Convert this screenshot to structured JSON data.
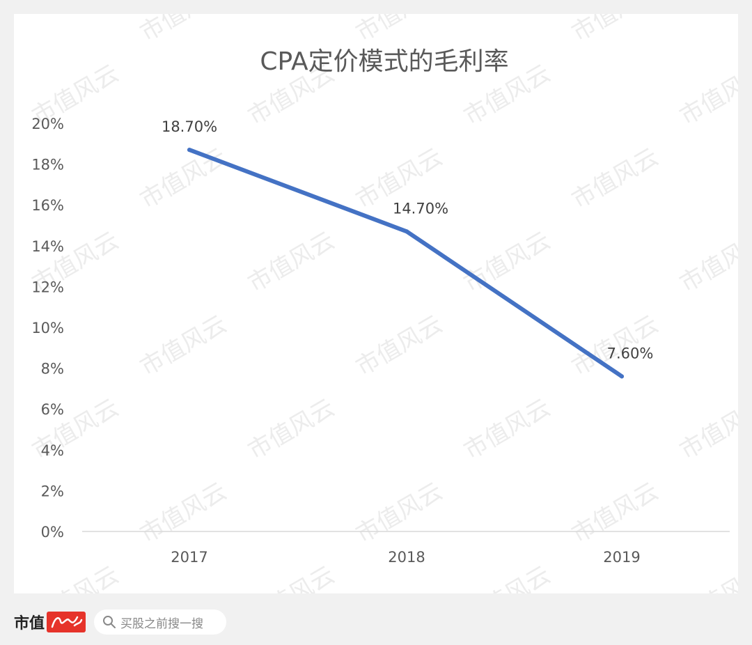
{
  "chart_data": {
    "type": "line",
    "title": "CPA定价模式的毛利率",
    "categories": [
      "2017",
      "2018",
      "2019"
    ],
    "series": [
      {
        "values": [
          18.7,
          14.7,
          7.6
        ],
        "data_labels": [
          "18.70%",
          "14.70%",
          "7.60%"
        ]
      }
    ],
    "ylim": [
      0,
      20
    ],
    "y_ticks": [
      0,
      2,
      4,
      6,
      8,
      10,
      12,
      14,
      16,
      18,
      20
    ],
    "y_tick_labels": [
      "0%",
      "2%",
      "4%",
      "6%",
      "8%",
      "10%",
      "12%",
      "14%",
      "16%",
      "18%",
      "20%"
    ],
    "grid": false,
    "legend": "none",
    "line_color": "#4472c4"
  },
  "watermark": "市值风云",
  "footer": {
    "brand_text": "市值",
    "brand_color": "#e6332a",
    "search_placeholder": "买股之前搜一搜"
  }
}
